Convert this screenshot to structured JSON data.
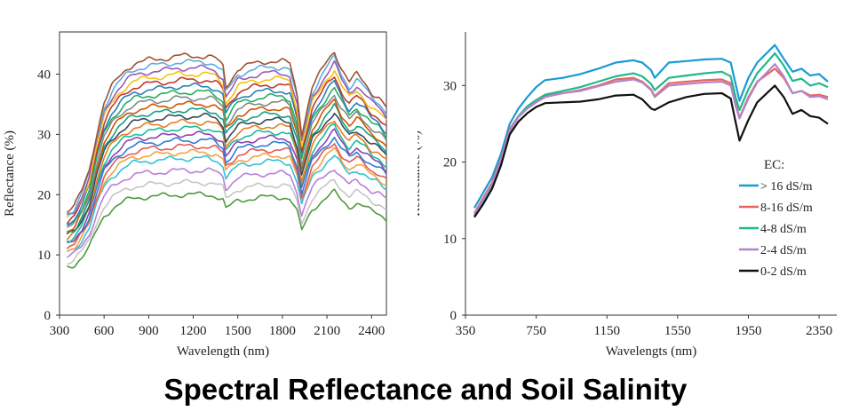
{
  "caption": "Spectral Reflectance and Soil Salinity",
  "chart_data": [
    {
      "type": "line",
      "title": "",
      "xlabel": "Wavelength (nm)",
      "ylabel": "Reflectance (%)",
      "xlim": [
        300,
        2500
      ],
      "ylim": [
        0,
        47
      ],
      "xticks": [
        300,
        600,
        900,
        1200,
        1500,
        1800,
        2100,
        2400
      ],
      "yticks": [
        0,
        10,
        20,
        30,
        40
      ],
      "grid": false,
      "legend": "none",
      "series_note": "many overlapping soil sample spectra",
      "profile": {
        "x": [
          350,
          400,
          450,
          500,
          550,
          600,
          650,
          700,
          750,
          800,
          900,
          1000,
          1100,
          1200,
          1300,
          1350,
          1400,
          1420,
          1500,
          1600,
          1700,
          1800,
          1850,
          1900,
          1930,
          2000,
          2100,
          2150,
          2200,
          2250,
          2300,
          2350,
          2400,
          2450,
          2500
        ],
        "level": [
          0.4,
          0.42,
          0.48,
          0.56,
          0.7,
          0.82,
          0.88,
          0.92,
          0.95,
          0.97,
          0.985,
          0.99,
          1.0,
          1.0,
          1.0,
          0.99,
          0.96,
          0.88,
          0.95,
          0.97,
          0.98,
          0.98,
          0.97,
          0.85,
          0.7,
          0.88,
          0.98,
          1.02,
          0.95,
          0.9,
          0.93,
          0.9,
          0.86,
          0.84,
          0.8
        ]
      },
      "plateaus": [
        20,
        22,
        24,
        26,
        27,
        28,
        29,
        30,
        31,
        32,
        33,
        34,
        35,
        36,
        37,
        38,
        39,
        40,
        41,
        42,
        43
      ],
      "colors": [
        "#4e9a3c",
        "#c6c6c6",
        "#b97fd6",
        "#33c2d6",
        "#f2a340",
        "#e05a5a",
        "#2e7bd3",
        "#8e44ad",
        "#1abc9c",
        "#e67e22",
        "#34495e",
        "#16a085",
        "#d35400",
        "#7f8c8d",
        "#27ae60",
        "#2980b9",
        "#c0392b",
        "#f1c40f",
        "#9b59b6",
        "#5dade2",
        "#a0522d"
      ]
    },
    {
      "type": "line",
      "title": "",
      "xlabel": "Wavelengts (nm)",
      "ylabel": "Reflectance (%)",
      "xlim": [
        350,
        2450
      ],
      "ylim": [
        0,
        37
      ],
      "xticks": [
        350,
        750,
        1150,
        1550,
        1950,
        2350
      ],
      "yticks": [
        0,
        10,
        20,
        30
      ],
      "grid": false,
      "legend": "right",
      "legend_title": "EC:",
      "series": [
        {
          "name": "> 16 dS/m",
          "color": "#1a9ad6",
          "x": [
            400,
            450,
            500,
            550,
            600,
            650,
            700,
            750,
            800,
            900,
            1000,
            1100,
            1200,
            1300,
            1350,
            1400,
            1420,
            1500,
            1600,
            1700,
            1800,
            1850,
            1880,
            1900,
            1950,
            2000,
            2100,
            2150,
            2200,
            2250,
            2300,
            2350,
            2400
          ],
          "y": [
            14,
            16,
            18,
            21,
            25,
            27,
            28.5,
            29.8,
            30.7,
            31,
            31.5,
            32.2,
            33,
            33.3,
            33,
            32,
            31,
            33,
            33.2,
            33.4,
            33.5,
            33,
            30,
            28,
            31,
            33,
            35.3,
            33.5,
            31.8,
            32.2,
            31.3,
            31.5,
            30.5
          ]
        },
        {
          "name": "8-16 dS/m",
          "color": "#e8665f",
          "x": [
            400,
            450,
            500,
            550,
            600,
            650,
            700,
            750,
            800,
            900,
            1000,
            1100,
            1200,
            1300,
            1350,
            1400,
            1420,
            1500,
            1600,
            1700,
            1800,
            1850,
            1880,
            1900,
            1950,
            2000,
            2100,
            2150,
            2200,
            2250,
            2300,
            2350,
            2400
          ],
          "y": [
            13.3,
            15.3,
            17.3,
            20.3,
            24.3,
            26,
            27.2,
            28,
            28.7,
            29,
            29.4,
            30,
            30.8,
            31,
            30.5,
            29.5,
            28.6,
            30.3,
            30.5,
            30.7,
            30.8,
            30.3,
            27.5,
            25.8,
            28.5,
            30.5,
            32.2,
            31,
            29,
            29.3,
            28.7,
            28.8,
            28.5
          ]
        },
        {
          "name": "4-8 dS/m",
          "color": "#1fb98c",
          "x": [
            400,
            450,
            500,
            550,
            600,
            650,
            700,
            750,
            800,
            900,
            1000,
            1100,
            1200,
            1300,
            1350,
            1400,
            1420,
            1500,
            1600,
            1700,
            1800,
            1850,
            1880,
            1900,
            1950,
            2000,
            2100,
            2150,
            2200,
            2250,
            2300,
            2350,
            2400
          ],
          "y": [
            13,
            15,
            17,
            20,
            24,
            26,
            27.3,
            28.1,
            28.8,
            29.3,
            29.8,
            30.5,
            31.2,
            31.6,
            31.2,
            30.2,
            29.4,
            31,
            31.3,
            31.6,
            31.8,
            31.2,
            28.3,
            26.8,
            29.5,
            31.6,
            34.2,
            32.6,
            30.6,
            30.9,
            30,
            30.3,
            29.8
          ]
        },
        {
          "name": "2-4 dS/m",
          "color": "#b285c9",
          "x": [
            400,
            450,
            500,
            550,
            600,
            650,
            700,
            750,
            800,
            900,
            1000,
            1100,
            1200,
            1300,
            1350,
            1400,
            1420,
            1500,
            1600,
            1700,
            1800,
            1850,
            1880,
            1900,
            1950,
            2000,
            2100,
            2150,
            2200,
            2250,
            2300,
            2350,
            2400
          ],
          "y": [
            13.1,
            15.1,
            17.1,
            20.1,
            24.1,
            25.9,
            27,
            27.8,
            28.5,
            29,
            29.3,
            29.9,
            30.5,
            30.8,
            30.4,
            29.4,
            28.5,
            30,
            30.2,
            30.4,
            30.5,
            30,
            27.2,
            25.7,
            28.3,
            30.4,
            32.8,
            31.2,
            29,
            29.3,
            28.5,
            28.6,
            28.2
          ]
        },
        {
          "name": "0-2 dS/m",
          "color": "#111111",
          "x": [
            400,
            450,
            500,
            550,
            600,
            650,
            700,
            750,
            800,
            900,
            1000,
            1100,
            1200,
            1300,
            1350,
            1400,
            1420,
            1500,
            1600,
            1700,
            1800,
            1850,
            1880,
            1900,
            1950,
            2000,
            2100,
            2150,
            2200,
            2250,
            2300,
            2350,
            2400
          ],
          "y": [
            12.8,
            14.5,
            16.5,
            19.5,
            23.6,
            25.3,
            26.4,
            27.2,
            27.7,
            27.8,
            27.9,
            28.2,
            28.7,
            28.8,
            28.2,
            27,
            26.8,
            27.8,
            28.5,
            28.9,
            29,
            28.3,
            25,
            22.8,
            25.5,
            27.8,
            30,
            28.5,
            26.3,
            26.8,
            26,
            25.8,
            25
          ]
        }
      ]
    }
  ]
}
